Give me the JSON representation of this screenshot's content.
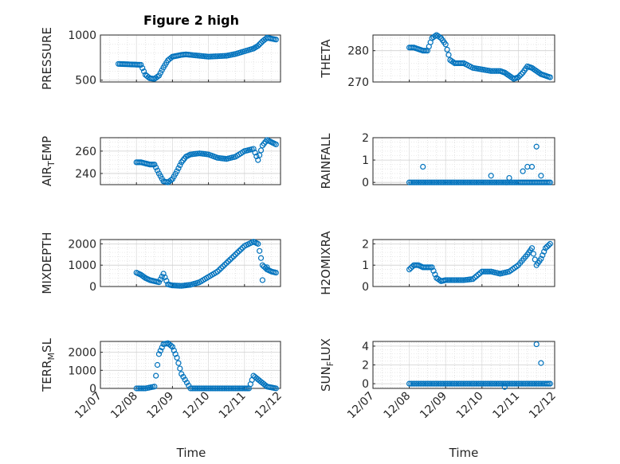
{
  "figure": {
    "title": "Figure 2 high",
    "xlabel": "Time",
    "marker_color": "#0072bd",
    "date_ticks": [
      "12/07",
      "12/08",
      "12/09",
      "12/10",
      "12/11",
      "12/12"
    ]
  },
  "chart_data": [
    {
      "type": "scatter",
      "name": "PRESSURE",
      "ylabel_main": "PRESSURE",
      "ylabel_sub": "",
      "ylim": [
        480,
        1000
      ],
      "yticks": [
        500,
        1000
      ],
      "grid": true,
      "x": [
        "12/07 12:00",
        "12/07 15:00",
        "12/07 18:00",
        "12/07 21:00",
        "12/08 00:00",
        "12/08 03:00",
        "12/08 06:00",
        "12/08 09:00",
        "12/08 12:00",
        "12/08 15:00",
        "12/08 18:00",
        "12/08 21:00",
        "12/09 00:00",
        "12/09 03:00",
        "12/09 06:00",
        "12/09 09:00",
        "12/09 12:00",
        "12/09 18:00",
        "12/10 00:00",
        "12/10 06:00",
        "12/10 12:00",
        "12/10 18:00",
        "12/11 00:00",
        "12/11 06:00",
        "12/11 09:00",
        "12/11 12:00",
        "12/11 15:00",
        "12/11 18:00",
        "12/11 21:00"
      ],
      "y": [
        680,
        678,
        676,
        674,
        672,
        670,
        560,
        520,
        515,
        550,
        640,
        720,
        760,
        770,
        780,
        785,
        780,
        770,
        760,
        765,
        770,
        790,
        820,
        850,
        880,
        930,
        970,
        960,
        950
      ]
    },
    {
      "type": "scatter",
      "name": "THETA",
      "ylabel_main": "THETA",
      "ylabel_sub": "",
      "ylim": [
        270,
        285
      ],
      "yticks": [
        270,
        280
      ],
      "grid": true,
      "x": [
        "12/08 00:00",
        "12/08 03:00",
        "12/08 06:00",
        "12/08 09:00",
        "12/08 12:00",
        "12/08 15:00",
        "12/08 18:00",
        "12/08 21:00",
        "12/09 00:00",
        "12/09 03:00",
        "12/09 06:00",
        "12/09 09:00",
        "12/09 12:00",
        "12/09 18:00",
        "12/10 00:00",
        "12/10 06:00",
        "12/10 12:00",
        "12/10 15:00",
        "12/10 18:00",
        "12/10 21:00",
        "12/11 00:00",
        "12/11 03:00",
        "12/11 06:00",
        "12/11 09:00",
        "12/11 12:00",
        "12/11 15:00",
        "12/11 18:00",
        "12/11 21:00"
      ],
      "y": [
        281,
        281,
        280.5,
        280,
        280,
        284,
        285,
        284,
        282,
        277,
        276,
        276,
        276,
        274.5,
        274,
        273.5,
        273.5,
        273,
        272,
        271,
        271.5,
        273,
        275,
        274.5,
        273.5,
        272.5,
        272,
        271.5
      ]
    },
    {
      "type": "scatter",
      "name": "AIR_TEMP",
      "ylabel_main": "AIR",
      "ylabel_sub": "T",
      "ylabel_tail": "EMP",
      "ylim": [
        230,
        272
      ],
      "yticks": [
        240,
        260
      ],
      "grid": true,
      "x": [
        "12/08 00:00",
        "12/08 03:00",
        "12/08 06:00",
        "12/08 09:00",
        "12/08 12:00",
        "12/08 15:00",
        "12/08 18:00",
        "12/08 21:00",
        "12/09 00:00",
        "12/09 03:00",
        "12/09 06:00",
        "12/09 09:00",
        "12/09 12:00",
        "12/09 18:00",
        "12/10 00:00",
        "12/10 06:00",
        "12/10 12:00",
        "12/10 18:00",
        "12/11 00:00",
        "12/11 06:00",
        "12/11 09:00",
        "12/11 12:00",
        "12/11 15:00",
        "12/11 18:00",
        "12/11 21:00"
      ],
      "y": [
        250,
        250,
        249,
        248,
        248,
        240,
        233,
        232,
        235,
        242,
        250,
        255,
        257,
        258,
        257,
        254,
        253,
        255,
        260,
        262,
        252,
        265,
        270,
        268,
        266
      ]
    },
    {
      "type": "scatter",
      "name": "RAINFALL",
      "ylabel_main": "RAINFALL",
      "ylabel_sub": "",
      "ylim": [
        -0.1,
        2
      ],
      "yticks": [
        0,
        1,
        2
      ],
      "grid": true,
      "x": [
        "12/08 00:00",
        "12/08 06:00",
        "12/08 12:00",
        "12/08 18:00",
        "12/09 00:00",
        "12/09 06:00",
        "12/09 12:00",
        "12/09 18:00",
        "12/10 00:00",
        "12/10 06:00",
        "12/10 12:00",
        "12/10 18:00",
        "12/11 00:00",
        "12/11 03:00",
        "12/11 06:00",
        "12/11 09:00",
        "12/11 12:00",
        "12/11 15:00",
        "12/11 18:00",
        "12/11 21:00",
        "12/08 09:00",
        "12/10 06:00",
        "12/10 18:00",
        "12/11 03:00",
        "12/11 06:00",
        "12/11 09:00",
        "12/11 12:00",
        "12/11 15:00"
      ],
      "y": [
        0,
        0,
        0,
        0,
        0,
        0,
        0,
        0,
        0,
        0,
        0,
        0,
        0,
        0,
        0,
        0,
        0,
        0,
        0,
        0,
        0.7,
        0.3,
        0.2,
        0.5,
        0.7,
        0.7,
        1.6,
        0.3
      ]
    },
    {
      "type": "scatter",
      "name": "MIXDEPTH",
      "ylabel_main": "MIXDEPTH",
      "ylabel_sub": "",
      "ylim": [
        0,
        2200
      ],
      "yticks": [
        0,
        1000,
        2000
      ],
      "grid": true,
      "x": [
        "12/08 00:00",
        "12/08 03:00",
        "12/08 06:00",
        "12/08 09:00",
        "12/08 12:00",
        "12/08 15:00",
        "12/08 18:00",
        "12/08 21:00",
        "12/09 00:00",
        "12/09 06:00",
        "12/09 12:00",
        "12/09 18:00",
        "12/10 00:00",
        "12/10 06:00",
        "12/10 12:00",
        "12/10 18:00",
        "12/11 00:00",
        "12/11 06:00",
        "12/11 09:00",
        "12/11 12:00",
        "12/11 15:00",
        "12/11 18:00",
        "12/11 21:00",
        "12/11 12:00",
        "12/11 15:00"
      ],
      "y": [
        650,
        550,
        400,
        300,
        250,
        200,
        600,
        100,
        50,
        30,
        80,
        200,
        450,
        700,
        1100,
        1500,
        1900,
        2100,
        2000,
        1000,
        800,
        700,
        650,
        300,
        900
      ]
    },
    {
      "type": "scatter",
      "name": "H2OMIXRA",
      "ylabel_main": "H2OMIXRA",
      "ylabel_sub": "",
      "ylim": [
        0,
        2.2
      ],
      "yticks": [
        0,
        1,
        2
      ],
      "grid": true,
      "x": [
        "12/08 00:00",
        "12/08 03:00",
        "12/08 06:00",
        "12/08 09:00",
        "12/08 12:00",
        "12/08 15:00",
        "12/08 18:00",
        "12/08 21:00",
        "12/09 00:00",
        "12/09 06:00",
        "12/09 12:00",
        "12/09 18:00",
        "12/10 00:00",
        "12/10 06:00",
        "12/10 12:00",
        "12/10 18:00",
        "12/11 00:00",
        "12/11 06:00",
        "12/11 09:00",
        "12/11 12:00",
        "12/11 15:00",
        "12/11 18:00",
        "12/11 21:00"
      ],
      "y": [
        0.8,
        1,
        1,
        0.9,
        0.9,
        0.9,
        0.4,
        0.25,
        0.3,
        0.3,
        0.3,
        0.35,
        0.7,
        0.7,
        0.6,
        0.7,
        1,
        1.5,
        1.8,
        1,
        1.3,
        1.8,
        2
      ]
    },
    {
      "type": "scatter",
      "name": "TERR_MSL",
      "ylabel_main": "TERR",
      "ylabel_sub": "M",
      "ylabel_tail": "SL",
      "ylim": [
        0,
        2600
      ],
      "yticks": [
        0,
        1000,
        2000
      ],
      "grid": true,
      "x": [
        "12/08 00:00",
        "12/08 06:00",
        "12/08 12:00",
        "12/08 15:00",
        "12/08 18:00",
        "12/08 21:00",
        "12/09 00:00",
        "12/09 03:00",
        "12/09 06:00",
        "12/09 12:00",
        "12/09 18:00",
        "12/10 00:00",
        "12/10 06:00",
        "12/10 12:00",
        "12/10 18:00",
        "12/11 00:00",
        "12/11 03:00",
        "12/11 06:00",
        "12/11 09:00",
        "12/11 12:00",
        "12/11 15:00",
        "12/11 18:00",
        "12/11 21:00"
      ],
      "y": [
        0,
        0,
        100,
        1900,
        2450,
        2500,
        2300,
        1700,
        800,
        0,
        0,
        0,
        0,
        0,
        0,
        0,
        0,
        700,
        500,
        300,
        100,
        50,
        0
      ]
    },
    {
      "type": "scatter",
      "name": "SUN_FLUX",
      "ylabel_main": "SUN",
      "ylabel_sub": "F",
      "ylabel_tail": "LUX",
      "ylim": [
        -0.5,
        4.5
      ],
      "yticks": [
        0,
        2,
        4
      ],
      "grid": true,
      "x": [
        "12/08 00:00",
        "12/08 06:00",
        "12/08 12:00",
        "12/08 18:00",
        "12/09 00:00",
        "12/09 06:00",
        "12/09 12:00",
        "12/09 18:00",
        "12/10 00:00",
        "12/10 06:00",
        "12/10 12:00",
        "12/10 18:00",
        "12/11 00:00",
        "12/11 06:00",
        "12/11 12:00",
        "12/11 18:00",
        "12/11 21:00",
        "12/10 15:00",
        "12/11 12:00",
        "12/11 15:00"
      ],
      "y": [
        0,
        0,
        0,
        0,
        0,
        0,
        0,
        0,
        0,
        0,
        0,
        0,
        0,
        0,
        0,
        0,
        0,
        -0.35,
        4.2,
        2.2
      ]
    }
  ]
}
